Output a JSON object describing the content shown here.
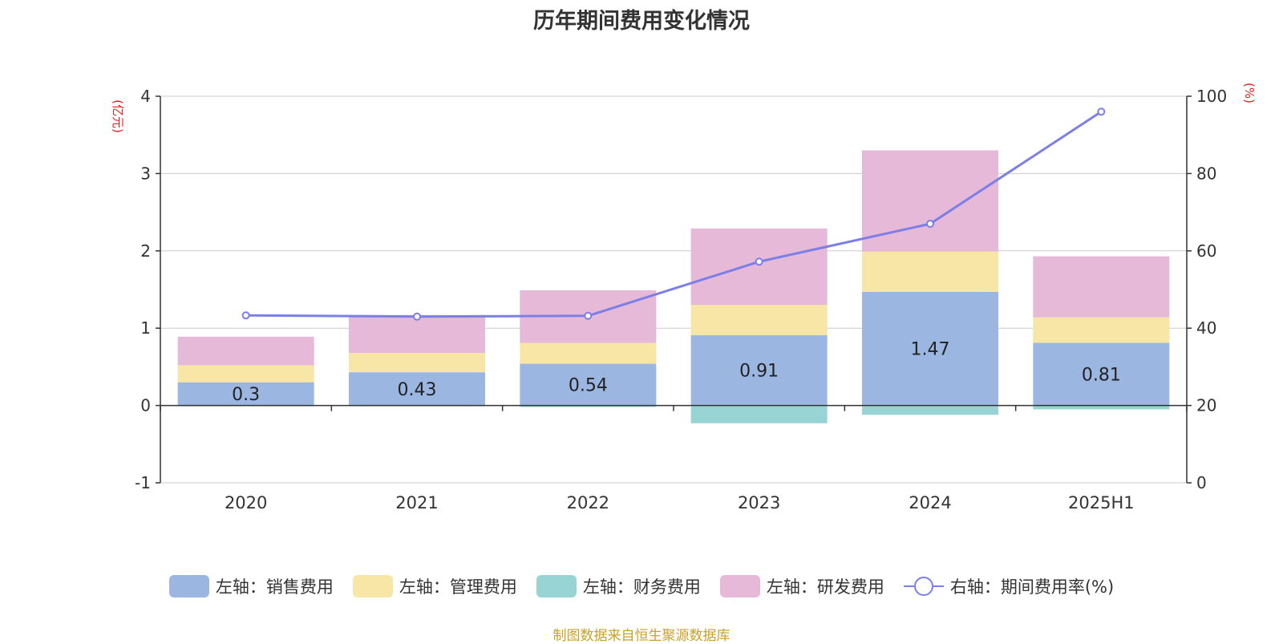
{
  "chart_data": {
    "type": "bar",
    "title": "历年期间费用变化情况",
    "categories": [
      "2020",
      "2021",
      "2022",
      "2023",
      "2024",
      "2025H1"
    ],
    "series": [
      {
        "name": "左轴：销售费用",
        "axis": "left",
        "color": "#9bb7e1",
        "values": [
          0.3,
          0.43,
          0.54,
          0.91,
          1.47,
          0.81
        ]
      },
      {
        "name": "左轴：管理费用",
        "axis": "left",
        "color": "#f7e6a6",
        "values": [
          0.22,
          0.25,
          0.27,
          0.39,
          0.52,
          0.33
        ]
      },
      {
        "name": "左轴：财务费用",
        "axis": "left",
        "color": "#98d4d4",
        "values": [
          -0.01,
          -0.01,
          -0.02,
          -0.23,
          -0.12,
          -0.05
        ]
      },
      {
        "name": "左轴：研发费用",
        "axis": "left",
        "color": "#e6b9d9",
        "values": [
          0.37,
          0.49,
          0.68,
          0.99,
          1.31,
          0.79
        ]
      },
      {
        "name": "右轴：期间费用率(%)",
        "axis": "right",
        "type": "line",
        "color": "#7b7fe6",
        "values": [
          43.3,
          43.0,
          43.2,
          57.2,
          67.0,
          96.0
        ]
      }
    ],
    "data_labels": [
      "0.3",
      "0.43",
      "0.54",
      "0.91",
      "1.47",
      "0.81"
    ],
    "y_left": {
      "label": "(亿元)",
      "ylim": [
        -1,
        4
      ],
      "ticks": [
        "-1",
        "0",
        "1",
        "2",
        "3",
        "4"
      ]
    },
    "y_right": {
      "label": "(%)",
      "ylim": [
        0,
        100
      ],
      "ticks": [
        "0",
        "20",
        "40",
        "60",
        "80",
        "100"
      ]
    },
    "grid": true,
    "legend_position": "bottom"
  },
  "source_note": "制图数据来自恒生聚源数据库"
}
